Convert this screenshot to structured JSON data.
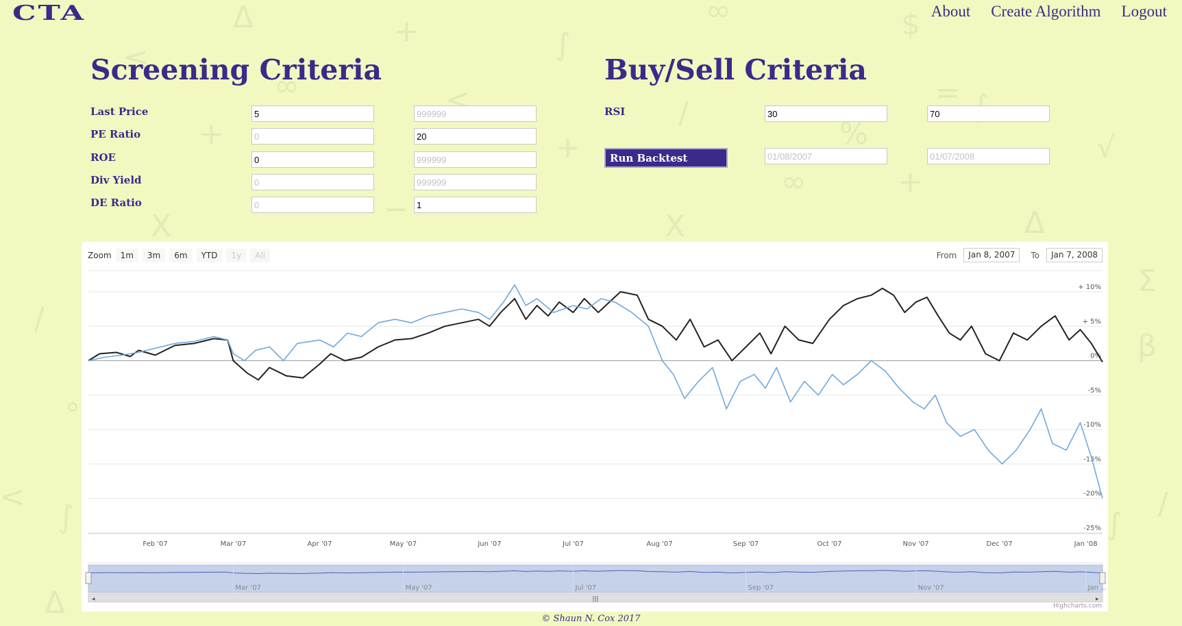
{
  "logo": "CTA",
  "nav": {
    "about": "About",
    "create": "Create Algorithm",
    "logout": "Logout"
  },
  "screening": {
    "title": "Screening Criteria",
    "rows": [
      {
        "label": "Last Price",
        "min_value": "5",
        "min_placeholder": "",
        "max_value": "",
        "max_placeholder": "999999"
      },
      {
        "label": "PE Ratio",
        "min_value": "",
        "min_placeholder": "0",
        "max_value": "20",
        "max_placeholder": ""
      },
      {
        "label": "ROE",
        "min_value": "0",
        "min_placeholder": "",
        "max_value": "",
        "max_placeholder": "999999"
      },
      {
        "label": "Div Yield",
        "min_value": "",
        "min_placeholder": "0",
        "max_value": "",
        "max_placeholder": "999999"
      },
      {
        "label": "DE Ratio",
        "min_value": "",
        "min_placeholder": "0",
        "max_value": "1",
        "max_placeholder": ""
      }
    ]
  },
  "buysell": {
    "title": "Buy/Sell Criteria",
    "rsi_label": "RSI",
    "rsi_low": "30",
    "rsi_high": "70",
    "run_label": "Run Backtest",
    "start_placeholder": "01/08/2007",
    "end_placeholder": "01/07/2008"
  },
  "chart_toolbar": {
    "zoom_label": "Zoom",
    "buttons": [
      "1m",
      "3m",
      "6m",
      "YTD",
      "1y",
      "All"
    ],
    "from_label": "From",
    "from_value": "Jan 8, 2007",
    "to_label": "To",
    "to_value": "Jan 7, 2008"
  },
  "chart_data": {
    "type": "line",
    "ylabel": "",
    "ylim": [
      -25,
      12
    ],
    "y_ticks": [
      {
        "v": 10,
        "label": "+ 10%"
      },
      {
        "v": 5,
        "label": "+ 5%"
      },
      {
        "v": 0,
        "label": "0%"
      },
      {
        "v": -5,
        "label": "-5%"
      },
      {
        "v": -10,
        "label": "-10%"
      },
      {
        "v": -15,
        "label": "-15%"
      },
      {
        "v": -20,
        "label": "-20%"
      },
      {
        "v": -25,
        "label": "-25%"
      }
    ],
    "x_range": [
      "2007-01-08",
      "2008-01-07"
    ],
    "x_ticks": [
      {
        "date": "2007-02-01",
        "label": "Feb '07"
      },
      {
        "date": "2007-03-01",
        "label": "Mar '07"
      },
      {
        "date": "2007-04-01",
        "label": "Apr '07"
      },
      {
        "date": "2007-05-01",
        "label": "May '07"
      },
      {
        "date": "2007-06-01",
        "label": "Jun '07"
      },
      {
        "date": "2007-07-01",
        "label": "Jul '07"
      },
      {
        "date": "2007-08-01",
        "label": "Aug '07"
      },
      {
        "date": "2007-09-01",
        "label": "Sep '07"
      },
      {
        "date": "2007-10-01",
        "label": "Oct '07"
      },
      {
        "date": "2007-11-01",
        "label": "Nov '07"
      },
      {
        "date": "2007-12-01",
        "label": "Dec '07"
      },
      {
        "date": "2008-01-01",
        "label": "Jan '08"
      }
    ],
    "series": [
      {
        "color": "#222222",
        "points": [
          [
            "2007-01-08",
            0
          ],
          [
            "2007-01-12",
            1
          ],
          [
            "2007-01-18",
            1.2
          ],
          [
            "2007-01-23",
            0.6
          ],
          [
            "2007-01-26",
            1.5
          ],
          [
            "2007-02-01",
            0.8
          ],
          [
            "2007-02-08",
            2.2
          ],
          [
            "2007-02-15",
            2.5
          ],
          [
            "2007-02-22",
            3.2
          ],
          [
            "2007-02-27",
            3.0
          ],
          [
            "2007-03-01",
            0
          ],
          [
            "2007-03-06",
            -1.8
          ],
          [
            "2007-03-10",
            -2.8
          ],
          [
            "2007-03-14",
            -1
          ],
          [
            "2007-03-20",
            -2.2
          ],
          [
            "2007-03-26",
            -2.5
          ],
          [
            "2007-04-01",
            -0.5
          ],
          [
            "2007-04-05",
            1
          ],
          [
            "2007-04-10",
            0
          ],
          [
            "2007-04-16",
            0.5
          ],
          [
            "2007-04-22",
            2
          ],
          [
            "2007-04-28",
            3
          ],
          [
            "2007-05-04",
            3.2
          ],
          [
            "2007-05-10",
            4
          ],
          [
            "2007-05-16",
            5
          ],
          [
            "2007-05-22",
            5.5
          ],
          [
            "2007-05-28",
            6
          ],
          [
            "2007-06-01",
            5
          ],
          [
            "2007-06-05",
            7
          ],
          [
            "2007-06-10",
            9
          ],
          [
            "2007-06-14",
            6
          ],
          [
            "2007-06-18",
            8
          ],
          [
            "2007-06-22",
            6.5
          ],
          [
            "2007-06-26",
            8.5
          ],
          [
            "2007-07-01",
            7
          ],
          [
            "2007-07-05",
            9
          ],
          [
            "2007-07-10",
            7
          ],
          [
            "2007-07-14",
            8.5
          ],
          [
            "2007-07-18",
            10
          ],
          [
            "2007-07-24",
            9.5
          ],
          [
            "2007-07-28",
            6
          ],
          [
            "2007-08-02",
            5
          ],
          [
            "2007-08-07",
            3
          ],
          [
            "2007-08-12",
            6
          ],
          [
            "2007-08-17",
            2
          ],
          [
            "2007-08-22",
            3
          ],
          [
            "2007-08-27",
            0
          ],
          [
            "2007-09-01",
            2
          ],
          [
            "2007-09-06",
            4
          ],
          [
            "2007-09-10",
            1
          ],
          [
            "2007-09-15",
            5
          ],
          [
            "2007-09-20",
            3
          ],
          [
            "2007-09-25",
            2.5
          ],
          [
            "2007-10-01",
            6
          ],
          [
            "2007-10-06",
            8
          ],
          [
            "2007-10-11",
            9
          ],
          [
            "2007-10-16",
            9.5
          ],
          [
            "2007-10-20",
            10.5
          ],
          [
            "2007-10-24",
            9.5
          ],
          [
            "2007-10-28",
            7
          ],
          [
            "2007-11-01",
            8.5
          ],
          [
            "2007-11-05",
            9.2
          ],
          [
            "2007-11-09",
            6.5
          ],
          [
            "2007-11-13",
            4
          ],
          [
            "2007-11-17",
            3
          ],
          [
            "2007-11-21",
            5
          ],
          [
            "2007-11-26",
            1
          ],
          [
            "2007-12-01",
            0
          ],
          [
            "2007-12-06",
            4
          ],
          [
            "2007-12-11",
            3
          ],
          [
            "2007-12-16",
            5
          ],
          [
            "2007-12-21",
            6.5
          ],
          [
            "2007-12-26",
            3
          ],
          [
            "2007-12-30",
            4.5
          ],
          [
            "2008-01-03",
            2.5
          ],
          [
            "2008-01-07",
            -0.2
          ]
        ]
      },
      {
        "color": "#6fa8dc",
        "points": [
          [
            "2007-01-08",
            0
          ],
          [
            "2007-01-14",
            0.5
          ],
          [
            "2007-01-20",
            0.8
          ],
          [
            "2007-01-26",
            1.2
          ],
          [
            "2007-02-01",
            1.8
          ],
          [
            "2007-02-08",
            2.5
          ],
          [
            "2007-02-15",
            2.8
          ],
          [
            "2007-02-22",
            3.5
          ],
          [
            "2007-02-27",
            3.0
          ],
          [
            "2007-03-01",
            1
          ],
          [
            "2007-03-05",
            0
          ],
          [
            "2007-03-09",
            1.5
          ],
          [
            "2007-03-14",
            2
          ],
          [
            "2007-03-19",
            0
          ],
          [
            "2007-03-24",
            2.5
          ],
          [
            "2007-04-01",
            3
          ],
          [
            "2007-04-06",
            2
          ],
          [
            "2007-04-11",
            4
          ],
          [
            "2007-04-16",
            3.5
          ],
          [
            "2007-04-22",
            5.5
          ],
          [
            "2007-04-28",
            6
          ],
          [
            "2007-05-04",
            5.5
          ],
          [
            "2007-05-10",
            6.5
          ],
          [
            "2007-05-16",
            7
          ],
          [
            "2007-05-22",
            7.5
          ],
          [
            "2007-05-28",
            7
          ],
          [
            "2007-06-01",
            6
          ],
          [
            "2007-06-06",
            8.5
          ],
          [
            "2007-06-10",
            11
          ],
          [
            "2007-06-14",
            8
          ],
          [
            "2007-06-18",
            9
          ],
          [
            "2007-06-24",
            7
          ],
          [
            "2007-07-01",
            8
          ],
          [
            "2007-07-06",
            7.5
          ],
          [
            "2007-07-11",
            9
          ],
          [
            "2007-07-16",
            8.5
          ],
          [
            "2007-07-22",
            7
          ],
          [
            "2007-07-28",
            5
          ],
          [
            "2007-08-02",
            0
          ],
          [
            "2007-08-06",
            -2
          ],
          [
            "2007-08-10",
            -5.5
          ],
          [
            "2007-08-15",
            -3
          ],
          [
            "2007-08-20",
            -1
          ],
          [
            "2007-08-25",
            -7
          ],
          [
            "2007-08-30",
            -3
          ],
          [
            "2007-09-04",
            -2
          ],
          [
            "2007-09-08",
            -4
          ],
          [
            "2007-09-12",
            -1
          ],
          [
            "2007-09-17",
            -6
          ],
          [
            "2007-09-22",
            -3
          ],
          [
            "2007-09-27",
            -5
          ],
          [
            "2007-10-02",
            -2
          ],
          [
            "2007-10-06",
            -3.5
          ],
          [
            "2007-10-11",
            -2
          ],
          [
            "2007-10-16",
            0
          ],
          [
            "2007-10-21",
            -1.5
          ],
          [
            "2007-10-26",
            -4
          ],
          [
            "2007-10-31",
            -6
          ],
          [
            "2007-11-04",
            -7
          ],
          [
            "2007-11-08",
            -5
          ],
          [
            "2007-11-12",
            -9
          ],
          [
            "2007-11-17",
            -11
          ],
          [
            "2007-11-22",
            -10
          ],
          [
            "2007-11-27",
            -13
          ],
          [
            "2007-12-02",
            -15
          ],
          [
            "2007-12-07",
            -13
          ],
          [
            "2007-12-12",
            -10
          ],
          [
            "2007-12-16",
            -7
          ],
          [
            "2007-12-20",
            -12
          ],
          [
            "2007-12-25",
            -13
          ],
          [
            "2007-12-30",
            -9
          ],
          [
            "2008-01-03",
            -14
          ],
          [
            "2008-01-07",
            -20
          ]
        ]
      }
    ],
    "navigator_labels": [
      "Mar '07",
      "May '07",
      "Jul '07",
      "Sep '07",
      "Nov '07",
      "Jan ..."
    ],
    "credit": "Highcharts.com"
  },
  "footer": "© Shaun N. Cox 2017"
}
